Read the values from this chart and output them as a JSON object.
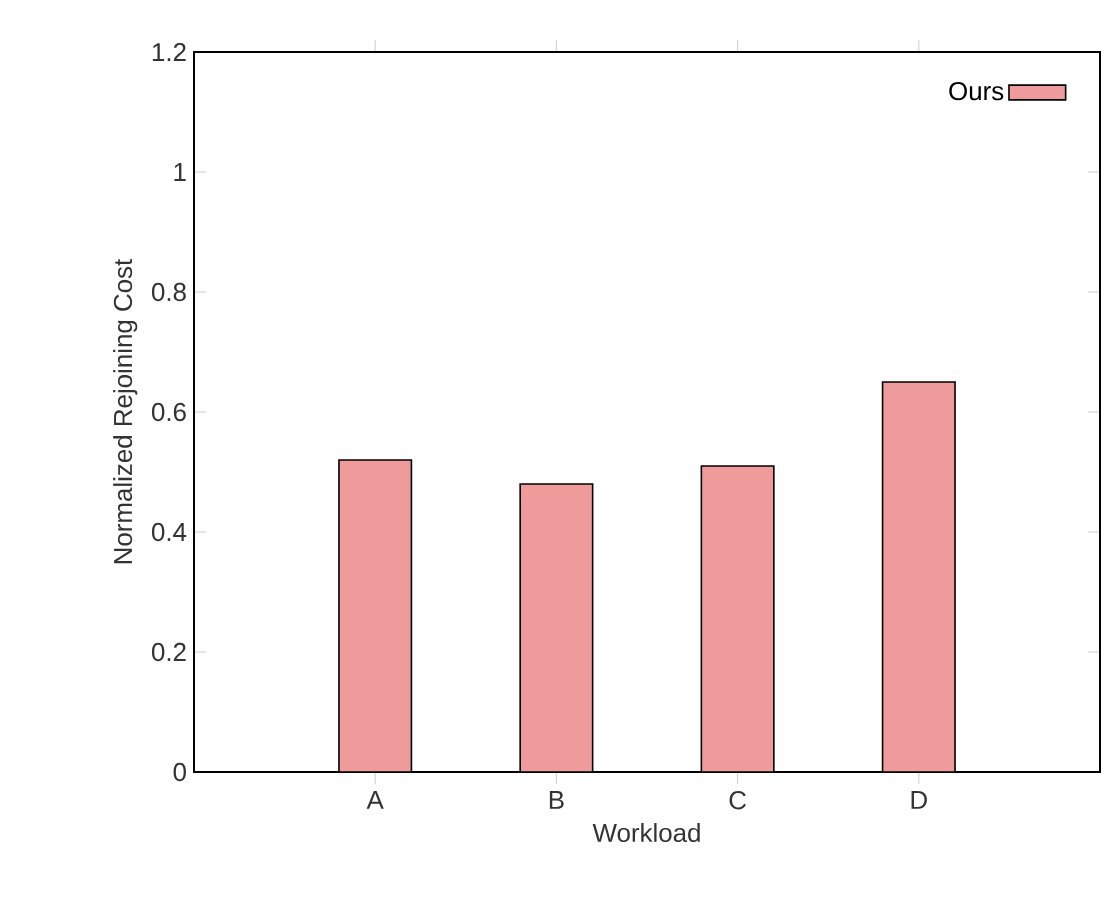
{
  "chart_data": {
    "type": "bar",
    "xlabel": "Workload",
    "ylabel": "Normalized Rejoining Cost",
    "categories": [
      "A",
      "B",
      "C",
      "D"
    ],
    "series": [
      {
        "name": "Ours",
        "color": "#ef9b9b",
        "values": [
          0.52,
          0.48,
          0.51,
          0.65
        ]
      }
    ],
    "ylim": [
      0,
      1.2
    ],
    "yticks": [
      0,
      0.2,
      0.4,
      0.6,
      0.8,
      1,
      1.2
    ],
    "legend": "top right"
  }
}
